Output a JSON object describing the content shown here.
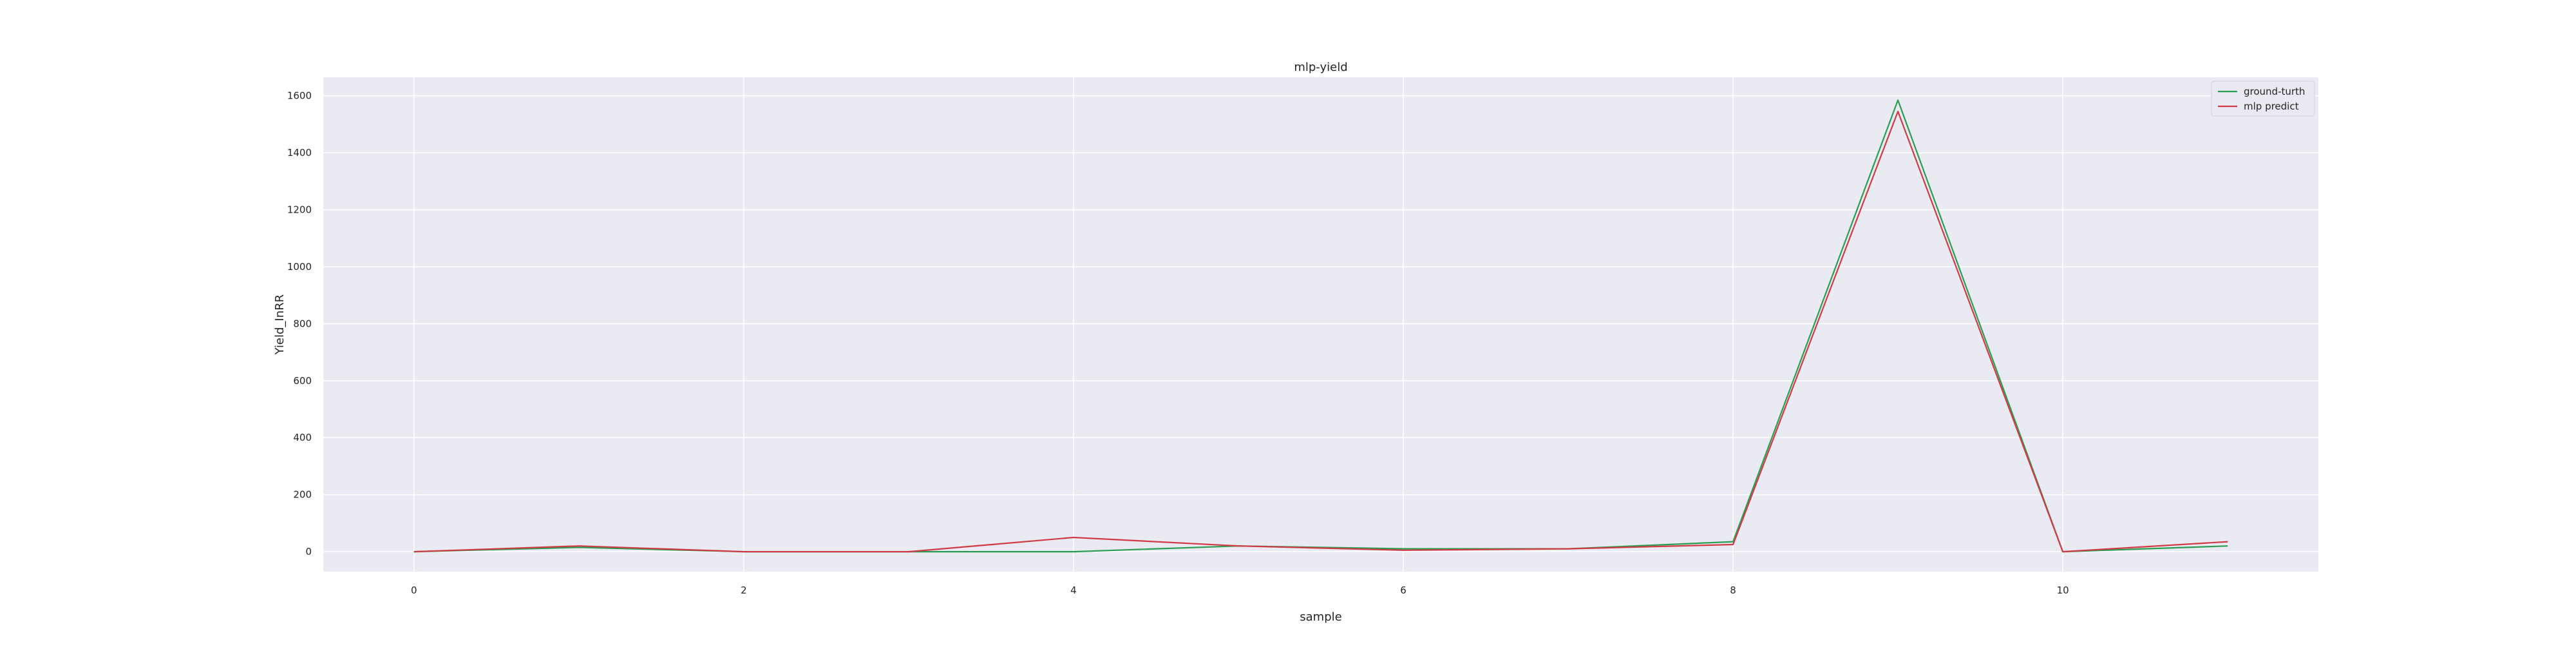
{
  "chart_data": {
    "type": "line",
    "title": "mlp-yield",
    "xlabel": "sample",
    "ylabel": "Yield_InRR",
    "x": [
      0,
      1,
      2,
      3,
      4,
      5,
      6,
      7,
      8,
      9,
      10,
      11
    ],
    "xlim": [
      -0.55,
      11.55
    ],
    "ylim": [
      -70,
      1665
    ],
    "xticks": [
      0,
      2,
      4,
      6,
      8,
      10
    ],
    "yticks": [
      0,
      200,
      400,
      600,
      800,
      1000,
      1200,
      1400,
      1600
    ],
    "grid": true,
    "legend_position": "top-right",
    "series": [
      {
        "name": "ground-turth",
        "color": "#2a9d52",
        "values": [
          0,
          15,
          0,
          0,
          0,
          20,
          10,
          10,
          35,
          1585,
          0,
          20
        ]
      },
      {
        "name": "mlp predict",
        "color": "#d03a45",
        "values": [
          0,
          20,
          0,
          0,
          50,
          20,
          5,
          10,
          25,
          1545,
          0,
          35
        ]
      }
    ]
  },
  "colors": {
    "plot_background": "#eaeaf2",
    "grid": "#ffffff"
  }
}
